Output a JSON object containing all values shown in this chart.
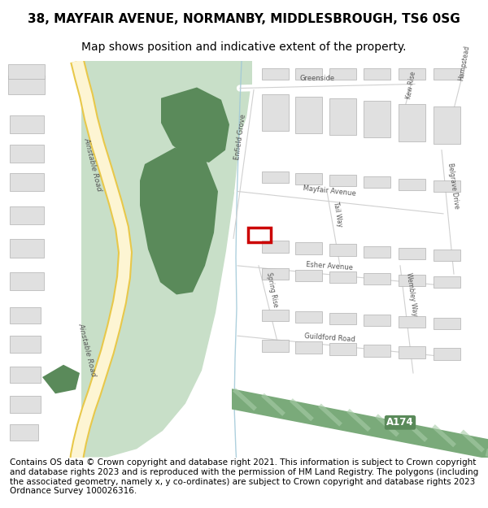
{
  "title_line1": "38, MAYFAIR AVENUE, NORMANBY, MIDDLESBROUGH, TS6 0SG",
  "title_line2": "Map shows position and indicative extent of the property.",
  "footer_text": "Contains OS data © Crown copyright and database right 2021. This information is subject to Crown copyright and database rights 2023 and is reproduced with the permission of HM Land Registry. The polygons (including the associated geometry, namely x, y co-ordinates) are subject to Crown copyright and database rights 2023 Ordnance Survey 100026316.",
  "bg_color": "#ffffff",
  "map_bg": "#f0f0f0",
  "road_yellow_light": "#fdf5d3",
  "road_yellow_border": "#e8c84a",
  "green_light": "#c8dfc8",
  "green_dark": "#5a8a5a",
  "road_stripe_color": "#d0d0d0",
  "building_color": "#e0e0e0",
  "building_edge": "#b0b0b0",
  "highlight_red": "#cc0000",
  "road_text_color": "#555555",
  "a174_green": "#7aaa7a",
  "a174_stripe": "#a8cca8",
  "stream_color": "#a0c8d8",
  "title_fontsize": 11,
  "subtitle_fontsize": 10,
  "footer_fontsize": 7.5
}
